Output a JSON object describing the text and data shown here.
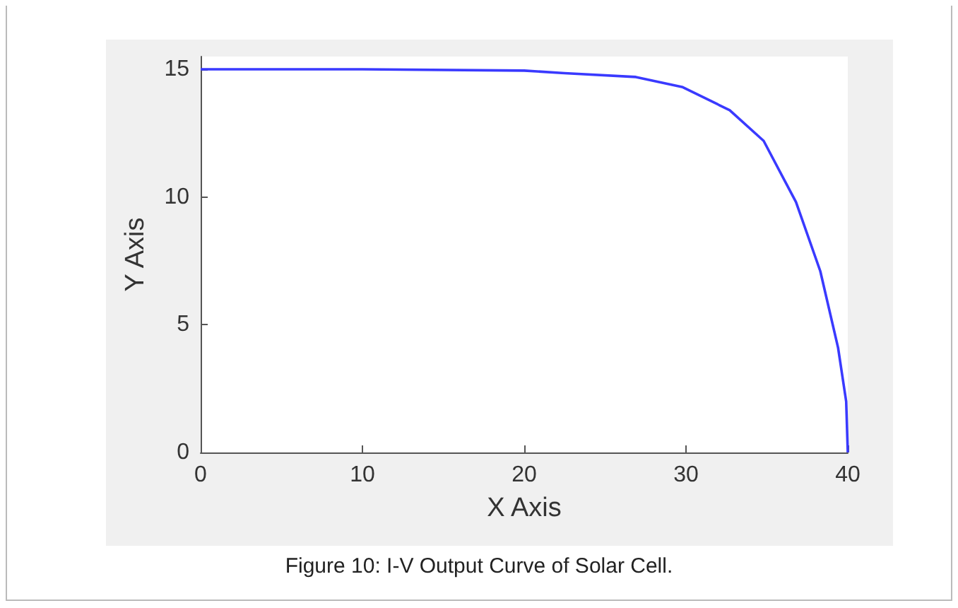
{
  "chart_data": {
    "type": "line",
    "title": "Figure 10: I-V Output Curve of Solar Cell.",
    "xlabel": "X Axis",
    "ylabel": "Y Axis",
    "x": [
      0,
      10,
      20,
      22.5,
      26.9,
      29.8,
      32.7,
      34.8,
      36.8,
      38.3,
      39.4,
      39.9,
      40
    ],
    "series": [
      {
        "color": "#3a3aff",
        "values": [
          15,
          15,
          14.95,
          14.85,
          14.7,
          14.3,
          13.4,
          12.2,
          9.8,
          7.1,
          4.1,
          2,
          0
        ]
      }
    ],
    "xlim": [
      0,
      40
    ],
    "xticks": [
      0,
      10,
      20,
      30,
      40
    ],
    "ylim": [
      0,
      15.5
    ],
    "yticks": [
      0,
      5,
      10,
      15
    ],
    "grid": false,
    "marker": "none",
    "line_style": "solid"
  }
}
